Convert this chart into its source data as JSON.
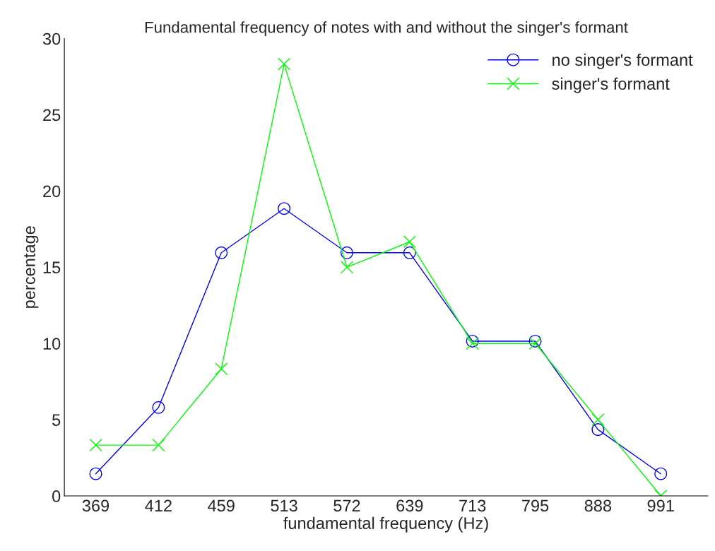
{
  "chart_data": {
    "type": "line",
    "title": "Fundamental frequency of notes with and without the singer's formant",
    "xlabel": "fundamental frequency (Hz)",
    "ylabel": "percentage",
    "categories": [
      "369",
      "412",
      "459",
      "513",
      "572",
      "639",
      "713",
      "795",
      "888",
      "991"
    ],
    "series": [
      {
        "name": "no singer's formant",
        "color": "#0000ff",
        "marker": "circle",
        "values": [
          1.45,
          5.8,
          15.95,
          18.85,
          15.95,
          15.95,
          10.15,
          10.15,
          4.35,
          1.45
        ]
      },
      {
        "name": "singer's formant",
        "color": "#00ff00",
        "marker": "cross",
        "values": [
          3.33,
          3.33,
          8.33,
          28.33,
          15.0,
          16.67,
          10.0,
          10.0,
          5.0,
          0.0
        ]
      }
    ],
    "ylim": [
      0,
      30
    ],
    "yticks": [
      0,
      5,
      10,
      15,
      20,
      25,
      30
    ],
    "grid": false,
    "legend": "top right",
    "line_style": "solid"
  }
}
